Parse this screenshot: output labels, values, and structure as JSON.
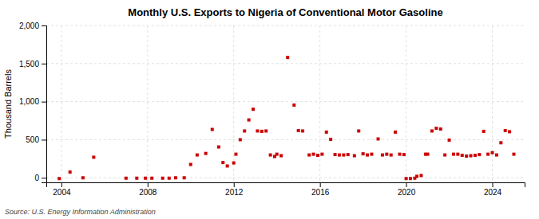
{
  "chart_data": {
    "type": "scatter",
    "title": "Monthly U.S. Exports to Nigeria of Conventional Motor Gasoline",
    "ylabel": "Thousand Barrels",
    "source": "Source: U.S. Energy Information Administration",
    "color": "#cc0000",
    "marker": "square",
    "grid": true,
    "xlim": [
      2003.3,
      2025.5
    ],
    "xticks": [
      2004,
      2008,
      2012,
      2016,
      2020,
      2024
    ],
    "ylim": [
      -60,
      2000
    ],
    "yticks": [
      0,
      500,
      {
        "value": 1000,
        "label": "1,000"
      },
      {
        "value": 1500,
        "label": "1,500"
      },
      {
        "value": 2000,
        "label": "2,000"
      }
    ],
    "x": [
      2003.9,
      2004.4,
      2005.0,
      2005.5,
      2007.0,
      2007.5,
      2007.9,
      2008.2,
      2008.7,
      2009.0,
      2009.3,
      2009.7,
      2010.0,
      2010.3,
      2010.7,
      2011.0,
      2011.3,
      2011.5,
      2011.7,
      2012.0,
      2012.1,
      2012.3,
      2012.5,
      2012.7,
      2012.9,
      2013.1,
      2013.3,
      2013.5,
      2013.7,
      2013.9,
      2014.0,
      2014.2,
      2014.5,
      2014.8,
      2015.0,
      2015.2,
      2015.5,
      2015.7,
      2015.9,
      2016.1,
      2016.3,
      2016.5,
      2016.7,
      2016.9,
      2017.1,
      2017.3,
      2017.6,
      2017.8,
      2018.0,
      2018.2,
      2018.4,
      2018.7,
      2018.9,
      2019.1,
      2019.3,
      2019.5,
      2019.7,
      2019.9,
      2020.0,
      2020.2,
      2020.4,
      2020.5,
      2020.7,
      2020.9,
      2021.0,
      2021.2,
      2021.4,
      2021.6,
      2021.8,
      2022.0,
      2022.2,
      2022.4,
      2022.6,
      2022.8,
      2023.0,
      2023.2,
      2023.4,
      2023.6,
      2023.8,
      2024.0,
      2024.2,
      2024.4,
      2024.6,
      2024.8,
      2025.0
    ],
    "values": [
      -10,
      75,
      0,
      270,
      -5,
      -5,
      -5,
      -5,
      -5,
      -5,
      0,
      0,
      175,
      300,
      320,
      635,
      405,
      200,
      155,
      195,
      310,
      500,
      615,
      760,
      900,
      615,
      610,
      615,
      300,
      280,
      310,
      290,
      1580,
      955,
      620,
      615,
      300,
      310,
      295,
      310,
      600,
      505,
      305,
      300,
      300,
      305,
      290,
      615,
      315,
      300,
      310,
      510,
      300,
      310,
      300,
      600,
      310,
      305,
      -10,
      -10,
      -5,
      20,
      30,
      310,
      310,
      615,
      650,
      640,
      300,
      495,
      310,
      310,
      295,
      285,
      290,
      295,
      305,
      610,
      310,
      330,
      300,
      460,
      620,
      605,
      310
    ]
  }
}
